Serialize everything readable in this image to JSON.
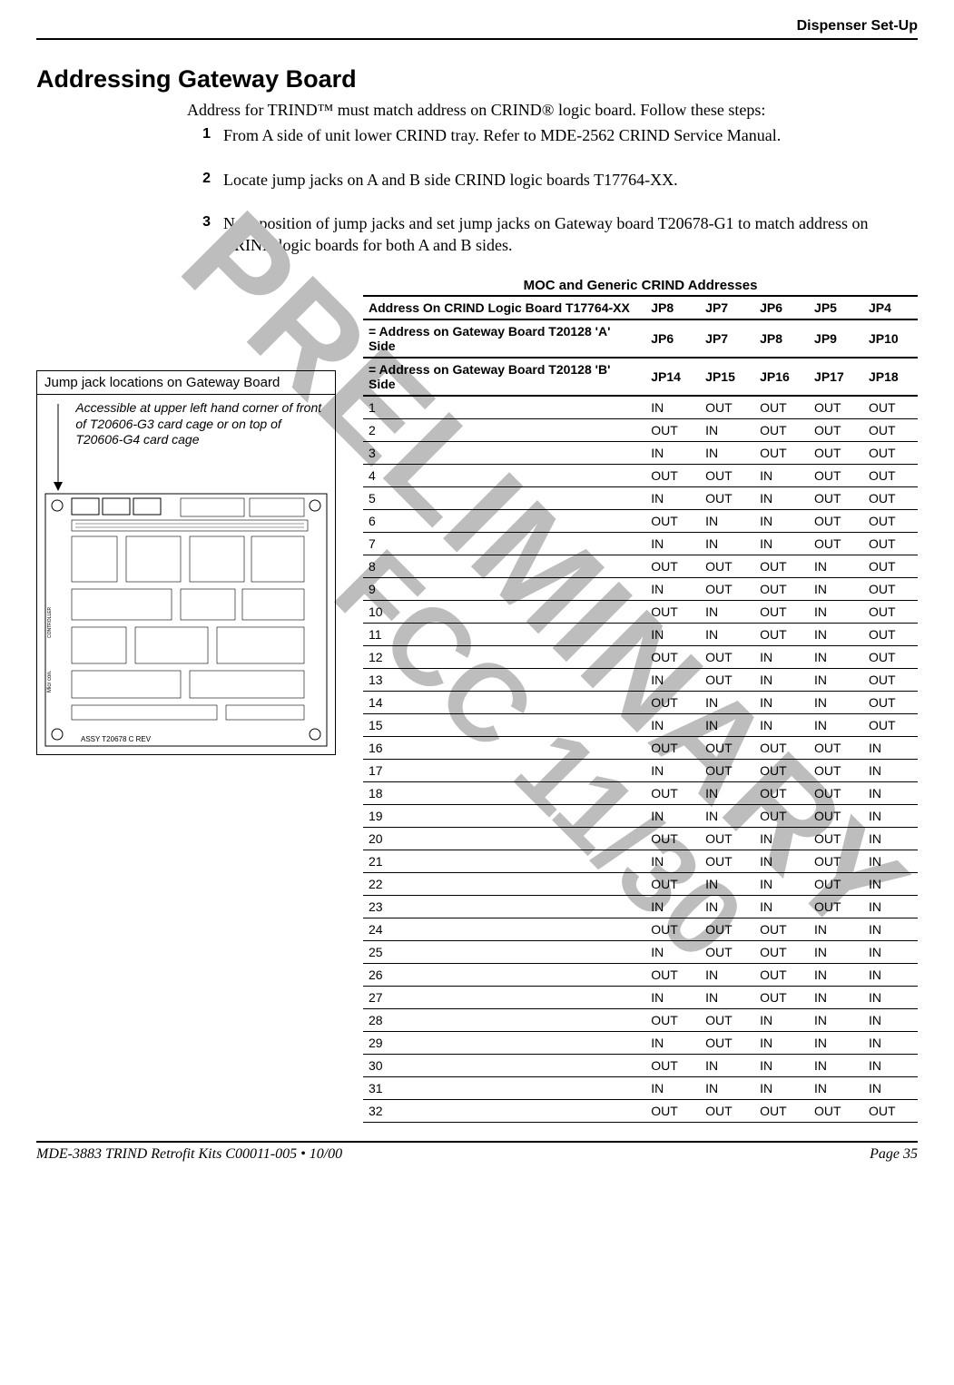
{
  "header": {
    "right": "Dispenser Set-Up"
  },
  "section_title": "Addressing Gateway Board",
  "intro": "Address for TRIND™ must match address on CRIND® logic board. Follow these steps:",
  "steps": [
    {
      "n": "1",
      "text": "From A side of unit lower CRIND tray. Refer to MDE-2562 CRIND Service Manual.",
      "font": "normal"
    },
    {
      "n": "2",
      "text": "Locate jump jacks on A and B side CRIND logic boards T17764-XX.",
      "font": "med"
    },
    {
      "n": "3",
      "text": "Note position of jump jacks and set jump jacks on Gateway board T20678-G1 to match address on CRIND logic boards for both A and B sides.",
      "font": "med"
    }
  ],
  "watermark": {
    "line1": "PRELIMINARY",
    "line2": "FCC 11/30"
  },
  "figure": {
    "title": "Jump jack locations on Gateway Board",
    "caption": "Accessible at upper left hand corner of front of T20606-G3 card cage or on top of T20606-G4 card cage",
    "board_label_bottom": "ASSY T20678 C    REV",
    "micro_label": "Micr con.",
    "ctrl_label": "CONTROLLER"
  },
  "table": {
    "title": "MOC and Generic CRIND Addresses",
    "head": [
      {
        "desc": "Address On CRIND Logic Board T17764-XX",
        "c": [
          "JP8",
          "JP7",
          "JP6",
          "JP5",
          "JP4"
        ]
      },
      {
        "desc": "= Address on Gateway Board T20128 'A' Side",
        "c": [
          "JP6",
          "JP7",
          "JP8",
          "JP9",
          "JP10"
        ]
      },
      {
        "desc": "= Address on Gateway Board T20128 'B' Side",
        "c": [
          "JP14",
          "JP15",
          "JP16",
          "JP17",
          "JP18"
        ]
      }
    ],
    "rows": [
      {
        "a": "1",
        "v": [
          "IN",
          "OUT",
          "OUT",
          "OUT",
          "OUT"
        ]
      },
      {
        "a": "2",
        "v": [
          "OUT",
          "IN",
          "OUT",
          "OUT",
          "OUT"
        ]
      },
      {
        "a": "3",
        "v": [
          "IN",
          "IN",
          "OUT",
          "OUT",
          "OUT"
        ]
      },
      {
        "a": "4",
        "v": [
          "OUT",
          "OUT",
          "IN",
          "OUT",
          "OUT"
        ]
      },
      {
        "a": "5",
        "v": [
          "IN",
          "OUT",
          "IN",
          "OUT",
          "OUT"
        ]
      },
      {
        "a": "6",
        "v": [
          "OUT",
          "IN",
          "IN",
          "OUT",
          "OUT"
        ]
      },
      {
        "a": "7",
        "v": [
          "IN",
          "IN",
          "IN",
          "OUT",
          "OUT"
        ]
      },
      {
        "a": "8",
        "v": [
          "OUT",
          "OUT",
          "OUT",
          "IN",
          "OUT"
        ]
      },
      {
        "a": "9",
        "v": [
          "IN",
          "OUT",
          "OUT",
          "IN",
          "OUT"
        ]
      },
      {
        "a": "10",
        "v": [
          "OUT",
          "IN",
          "OUT",
          "IN",
          "OUT"
        ]
      },
      {
        "a": "11",
        "v": [
          "IN",
          "IN",
          "OUT",
          "IN",
          "OUT"
        ]
      },
      {
        "a": "12",
        "v": [
          "OUT",
          "OUT",
          "IN",
          "IN",
          "OUT"
        ]
      },
      {
        "a": "13",
        "v": [
          "IN",
          "OUT",
          "IN",
          "IN",
          "OUT"
        ]
      },
      {
        "a": "14",
        "v": [
          "OUT",
          "IN",
          "IN",
          "IN",
          "OUT"
        ]
      },
      {
        "a": "15",
        "v": [
          "IN",
          "IN",
          "IN",
          "IN",
          "OUT"
        ]
      },
      {
        "a": "16",
        "v": [
          "OUT",
          "OUT",
          "OUT",
          "OUT",
          "IN"
        ]
      },
      {
        "a": "17",
        "v": [
          "IN",
          "OUT",
          "OUT",
          "OUT",
          "IN"
        ]
      },
      {
        "a": "18",
        "v": [
          "OUT",
          "IN",
          "OUT",
          "OUT",
          "IN"
        ]
      },
      {
        "a": "19",
        "v": [
          "IN",
          "IN",
          "OUT",
          "OUT",
          "IN"
        ]
      },
      {
        "a": "20",
        "v": [
          "OUT",
          "OUT",
          "IN",
          "OUT",
          "IN"
        ]
      },
      {
        "a": "21",
        "v": [
          "IN",
          "OUT",
          "IN",
          "OUT",
          "IN"
        ]
      },
      {
        "a": "22",
        "v": [
          "OUT",
          "IN",
          "IN",
          "OUT",
          "IN"
        ]
      },
      {
        "a": "23",
        "v": [
          "IN",
          "IN",
          "IN",
          "OUT",
          "IN"
        ]
      },
      {
        "a": "24",
        "v": [
          "OUT",
          "OUT",
          "OUT",
          "IN",
          "IN"
        ]
      },
      {
        "a": "25",
        "v": [
          "IN",
          "OUT",
          "OUT",
          "IN",
          "IN"
        ]
      },
      {
        "a": "26",
        "v": [
          "OUT",
          "IN",
          "OUT",
          "IN",
          "IN"
        ]
      },
      {
        "a": "27",
        "v": [
          "IN",
          "IN",
          "OUT",
          "IN",
          "IN"
        ]
      },
      {
        "a": "28",
        "v": [
          "OUT",
          "OUT",
          "IN",
          "IN",
          "IN"
        ]
      },
      {
        "a": "29",
        "v": [
          "IN",
          "OUT",
          "IN",
          "IN",
          "IN"
        ]
      },
      {
        "a": "30",
        "v": [
          "OUT",
          "IN",
          "IN",
          "IN",
          "IN"
        ]
      },
      {
        "a": "31",
        "v": [
          "IN",
          "IN",
          "IN",
          "IN",
          "IN"
        ]
      },
      {
        "a": "32",
        "v": [
          "OUT",
          "OUT",
          "OUT",
          "OUT",
          "OUT"
        ]
      }
    ]
  },
  "footer": {
    "left": "MDE-3883 TRIND Retrofit Kits C00011-005 • 10/00",
    "right": "Page 35"
  }
}
